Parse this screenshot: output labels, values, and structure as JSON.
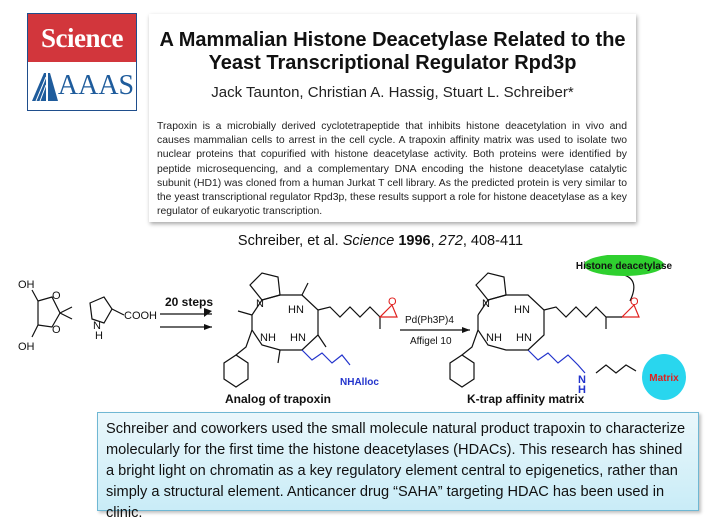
{
  "logo": {
    "top": "Science",
    "bottom": "AAAS"
  },
  "paper": {
    "title": "A Mammalian Histone Deacetylase Related to the Yeast Transcriptional Regulator Rpd3p",
    "authors": "Jack Taunton, Christian A. Hassig, Stuart L. Schreiber*",
    "abstract": "Trapoxin is a microbially derived cyclotetrapeptide that inhibits histone deacetylation in vivo and causes mammalian cells to arrest in the cell cycle. A trapoxin affinity matrix was used to isolate two nuclear proteins that copurified with histone deacetylase activity. Both proteins were identified by peptide microsequencing, and a complementary DNA encoding the histone deacetylase catalytic subunit (HD1) was cloned from a human Jurkat T cell library. As the predicted protein is very similar to the yeast transcriptional regulator Rpd3p, these results support a role for histone deacetylase as a key regulator of eukaryotic transcription."
  },
  "citation": {
    "authors": "Schreiber, et al. ",
    "journal": "Science",
    "year": "1996",
    "rest_sep": ", ",
    "volume": "272",
    "pages": ", 408-411"
  },
  "scheme": {
    "step1": "20 steps",
    "reagent1": "Pd(Ph3P)4",
    "reagent2": "Affigel 10",
    "sm_labels": {
      "oh": "OH",
      "o": "O",
      "cooh": "COOH",
      "n": "N",
      "h": "H"
    },
    "atom_labels": {
      "hn": "HN",
      "nh": "NH",
      "n": "N",
      "o": "O",
      "nhalloc": "NHAlloc",
      "h": "H"
    },
    "compound1": "Analog of trapoxin",
    "compound2": "K-trap affinity matrix",
    "enzyme": "Histone deacetylase",
    "matrix": "Matrix",
    "colors": {
      "enzyme": "#2fd02f",
      "matrix": "#29d6ee",
      "epoxide": "#e0201e",
      "linker": "#2233cc"
    }
  },
  "note": "Schreiber and coworkers used the small molecule natural product trapoxin to characterize molecularly for the first time the histone deacetylases (HDACs). This research has shined a bright light on chromatin as a key regulatory element central to epigenetics, rather than simply a structural element. Anticancer drug “SAHA” targeting HDAC has been used in clinic."
}
